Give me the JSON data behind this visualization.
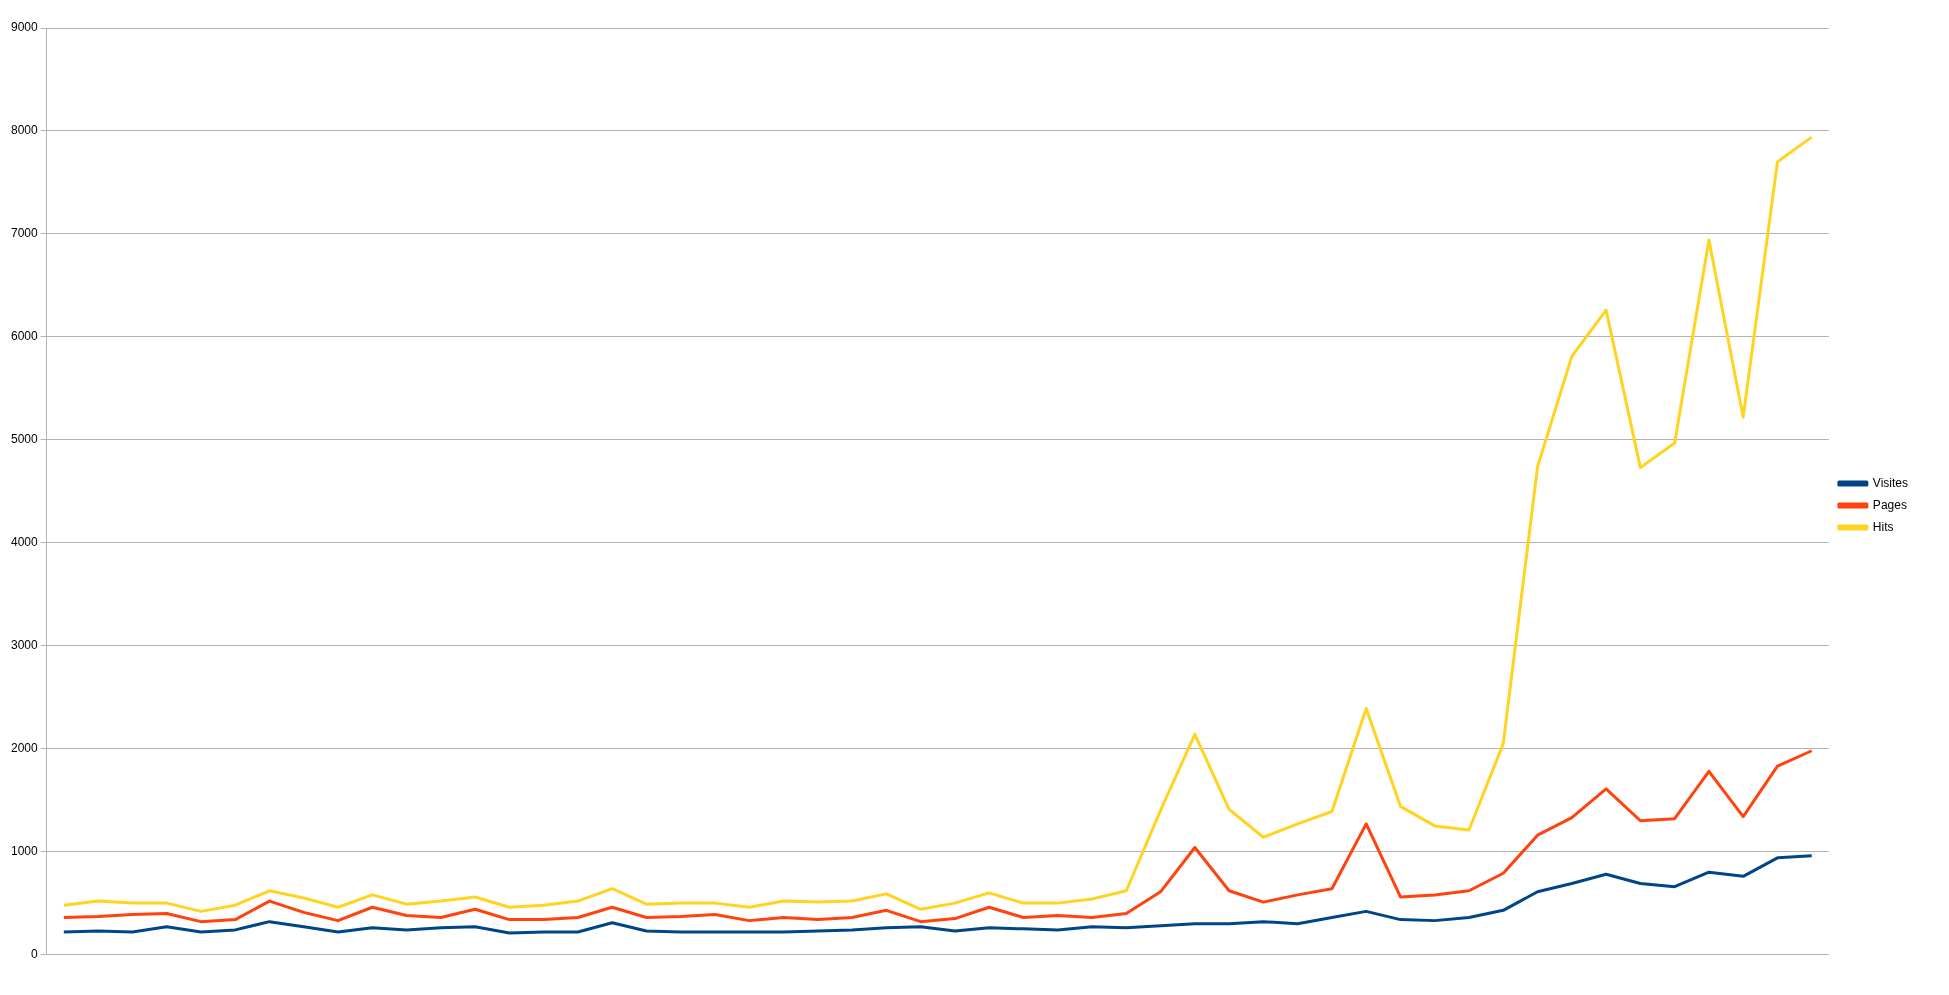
{
  "chart_data": {
    "type": "line",
    "categories": [
      null,
      null,
      null,
      null,
      null,
      null,
      null,
      null,
      null,
      null,
      null,
      null,
      null,
      null,
      null,
      null,
      null,
      null,
      null,
      null,
      null,
      null,
      null,
      null,
      null,
      null,
      null,
      null,
      null,
      null,
      null,
      null,
      null,
      null,
      null,
      null,
      null,
      null,
      null,
      null,
      null,
      null,
      null,
      null,
      null,
      null,
      null,
      null,
      null,
      null,
      null,
      null
    ],
    "series": [
      {
        "name": "Visites",
        "color": "#004586",
        "values": [
          220,
          230,
          220,
          270,
          220,
          240,
          320,
          270,
          220,
          260,
          240,
          260,
          270,
          210,
          220,
          220,
          310,
          230,
          220,
          220,
          220,
          220,
          230,
          240,
          260,
          270,
          230,
          260,
          250,
          240,
          270,
          260,
          280,
          300,
          300,
          320,
          300,
          360,
          420,
          340,
          330,
          360,
          430,
          610,
          690,
          780,
          690,
          660,
          800,
          760,
          940,
          960
        ]
      },
      {
        "name": "Pages",
        "color": "#ff420e",
        "values": [
          360,
          370,
          390,
          400,
          320,
          340,
          520,
          410,
          330,
          460,
          380,
          360,
          440,
          340,
          340,
          360,
          460,
          360,
          370,
          390,
          330,
          360,
          340,
          360,
          430,
          320,
          350,
          460,
          360,
          380,
          360,
          400,
          610,
          1040,
          620,
          510,
          580,
          640,
          1270,
          560,
          580,
          620,
          790,
          1160,
          1330,
          1610,
          1300,
          1320,
          1780,
          1340,
          1830,
          1980
        ]
      },
      {
        "name": "Hits",
        "color": "#ffd320",
        "values": [
          480,
          520,
          500,
          500,
          420,
          480,
          620,
          550,
          460,
          580,
          490,
          520,
          560,
          460,
          480,
          520,
          640,
          490,
          500,
          500,
          460,
          520,
          510,
          520,
          590,
          440,
          500,
          600,
          500,
          500,
          540,
          620,
          1400,
          2140,
          1410,
          1140,
          1270,
          1390,
          2390,
          1440,
          1250,
          1210,
          2050,
          4740,
          5810,
          6260,
          4730,
          4970,
          6940,
          5220,
          7700,
          7940
        ]
      }
    ],
    "ylim": [
      0,
      9000
    ],
    "yticks": [
      0,
      1000,
      2000,
      3000,
      4000,
      5000,
      6000,
      7000,
      8000,
      9000
    ],
    "grid": "y",
    "legend": "right",
    "marker": "none",
    "line_style": "solid"
  }
}
